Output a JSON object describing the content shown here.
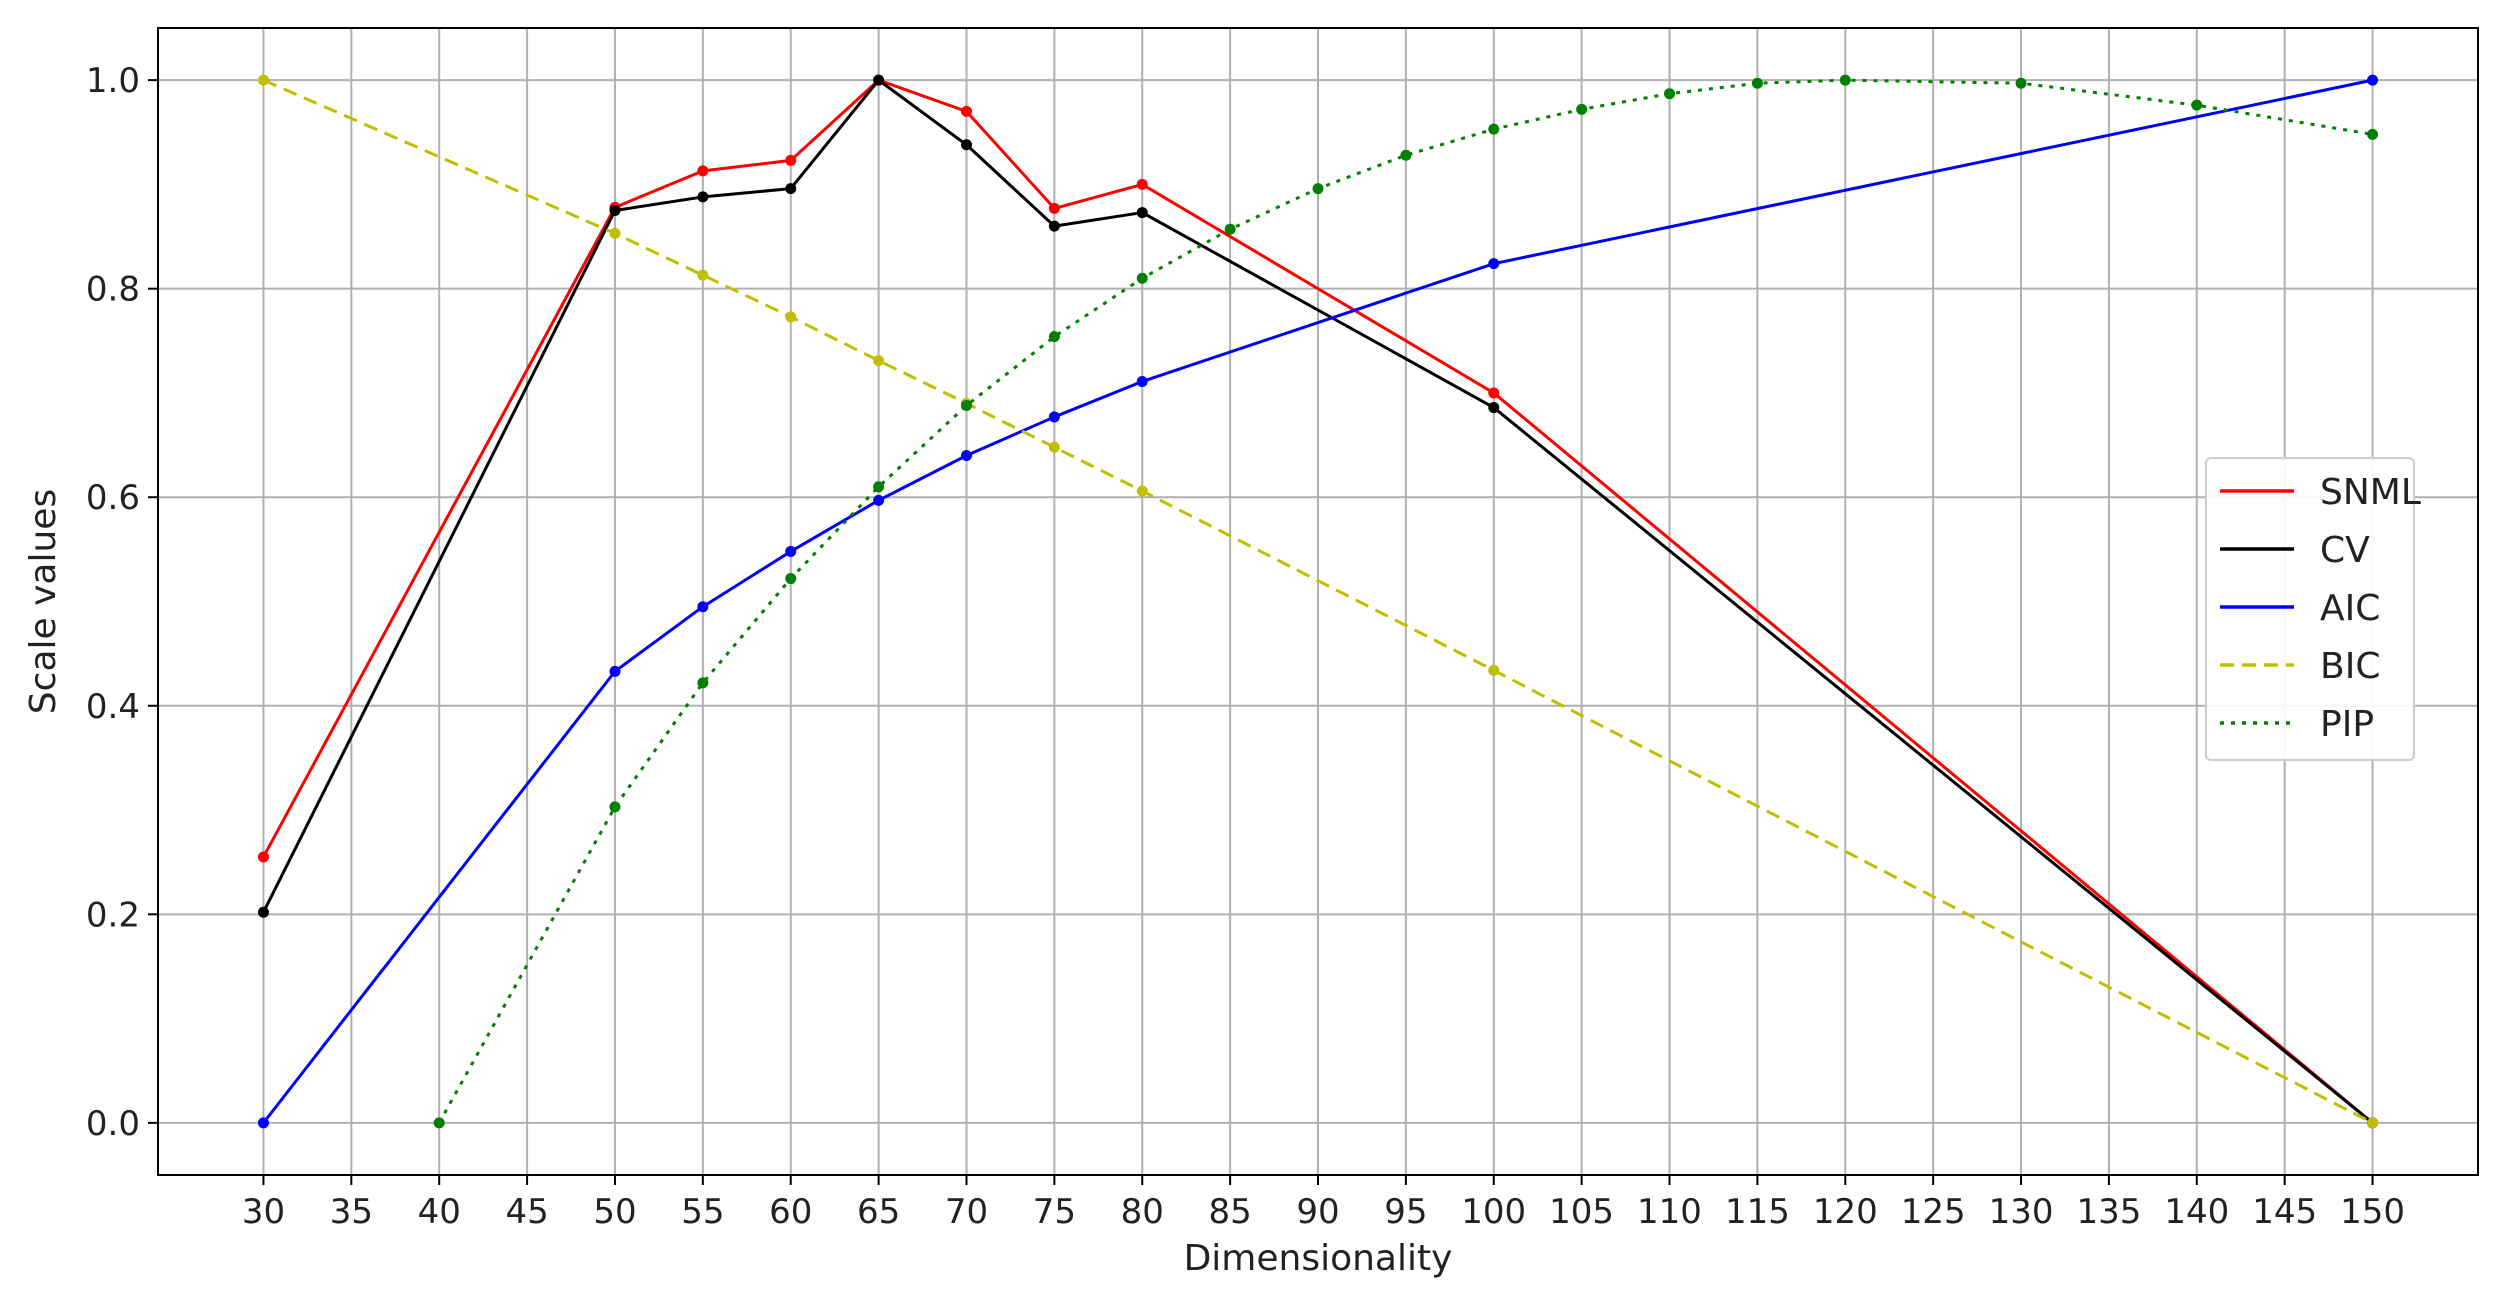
{
  "chart_data": {
    "type": "line",
    "title": "",
    "xlabel": "Dimensionality",
    "ylabel": "Scale values",
    "xlim": [
      24,
      156
    ],
    "ylim": [
      -0.05,
      1.05
    ],
    "xticks": [
      30,
      35,
      40,
      45,
      50,
      55,
      60,
      65,
      70,
      75,
      80,
      85,
      90,
      95,
      100,
      105,
      110,
      115,
      120,
      125,
      130,
      135,
      140,
      145,
      150
    ],
    "yticks": [
      0.0,
      0.2,
      0.4,
      0.6,
      0.8,
      1.0
    ],
    "ytick_labels": [
      "0.0",
      "0.2",
      "0.4",
      "0.6",
      "0.8",
      "1.0"
    ],
    "grid": true,
    "legend_position": "center-right",
    "series": [
      {
        "name": "SNML",
        "color": "#ff0000",
        "style": "solid",
        "x": [
          30,
          50,
          55,
          60,
          65,
          70,
          75,
          80,
          100,
          150
        ],
        "y": [
          0.255,
          0.878,
          0.913,
          0.923,
          1.0,
          0.97,
          0.877,
          0.9,
          0.7,
          0.0
        ]
      },
      {
        "name": "CV",
        "color": "#000000",
        "style": "solid",
        "x": [
          30,
          50,
          55,
          60,
          65,
          70,
          75,
          80,
          100,
          150
        ],
        "y": [
          0.202,
          0.875,
          0.888,
          0.896,
          1.0,
          0.938,
          0.86,
          0.873,
          0.686,
          0.0
        ]
      },
      {
        "name": "AIC",
        "color": "#0000ff",
        "style": "solid",
        "x": [
          30,
          50,
          55,
          60,
          65,
          70,
          75,
          80,
          100,
          150
        ],
        "y": [
          0.0,
          0.433,
          0.495,
          0.548,
          0.597,
          0.64,
          0.677,
          0.711,
          0.824,
          1.0
        ]
      },
      {
        "name": "BIC",
        "color": "#bfbf00",
        "style": "dashed",
        "x": [
          30,
          50,
          55,
          60,
          65,
          70,
          75,
          80,
          100,
          150
        ],
        "y": [
          1.0,
          0.853,
          0.813,
          0.773,
          0.731,
          0.69,
          0.648,
          0.606,
          0.434,
          0.0
        ]
      },
      {
        "name": "PIP",
        "color": "#008000",
        "style": "dotted",
        "x": [
          40,
          50,
          55,
          60,
          65,
          70,
          75,
          80,
          85,
          90,
          95,
          100,
          105,
          110,
          115,
          120,
          130,
          140,
          150
        ],
        "y": [
          0.0,
          0.303,
          0.422,
          0.522,
          0.61,
          0.688,
          0.754,
          0.81,
          0.857,
          0.896,
          0.928,
          0.953,
          0.972,
          0.987,
          0.997,
          1.0,
          0.997,
          0.976,
          0.948
        ]
      }
    ]
  }
}
